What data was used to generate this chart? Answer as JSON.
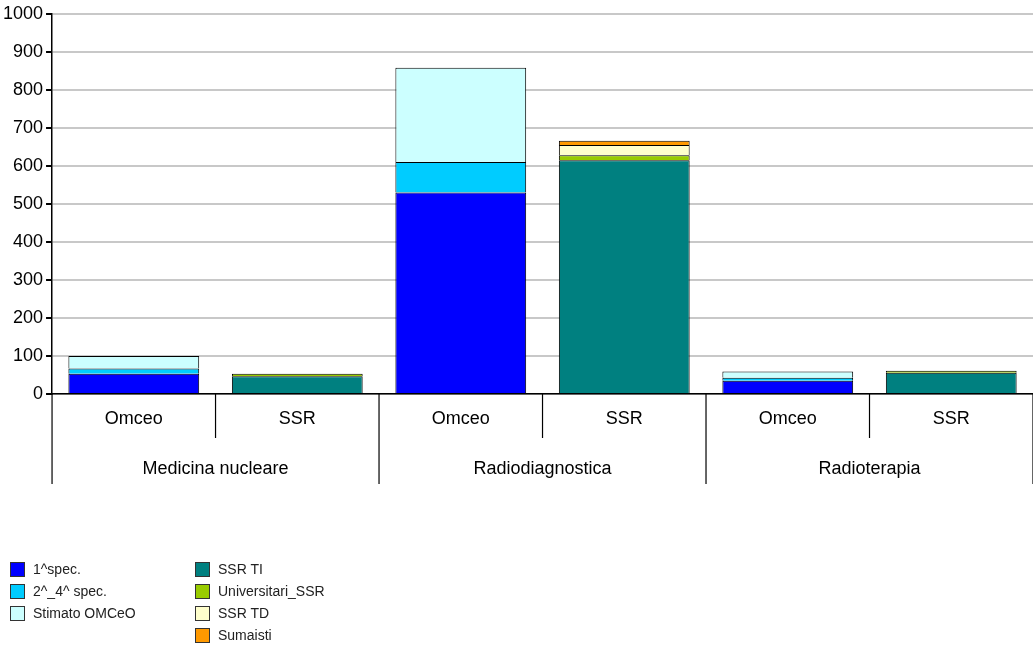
{
  "chart_data": {
    "type": "bar",
    "stacked": true,
    "categories": [
      "Omceo",
      "SSR",
      "Omceo",
      "SSR",
      "Omceo",
      "SSR"
    ],
    "annotations": [
      "Medicina nucleare",
      "Radiodiagnostica",
      "Radioterapia"
    ],
    "series": [
      {
        "name": "1^spec.",
        "color": "#0000ff",
        "values": [
          53,
          null,
          530,
          null,
          35,
          null
        ]
      },
      {
        "name": "2^_4^ spec.",
        "color": "#00ccff",
        "values": [
          14,
          null,
          80,
          null,
          8,
          null
        ]
      },
      {
        "name": "Stimato OMCeO",
        "color": "#ccffff",
        "values": [
          33,
          null,
          248,
          null,
          16,
          null
        ]
      },
      {
        "name": "SSR TI",
        "color": "#008080",
        "values": [
          null,
          47,
          null,
          615,
          null,
          56
        ]
      },
      {
        "name": "Universitari_SSR",
        "color": "#99cc00",
        "values": [
          null,
          6,
          null,
          13,
          null,
          5
        ]
      },
      {
        "name": "SSR TD",
        "color": "#ffffcc",
        "values": [
          null,
          null,
          null,
          27,
          null,
          null
        ]
      },
      {
        "name": "Sumaisti",
        "color": "#ff9900",
        "values": [
          null,
          null,
          null,
          11,
          null,
          null
        ]
      }
    ],
    "ylim": [
      0,
      1000
    ],
    "yticks": [
      0,
      100,
      200,
      300,
      400,
      500,
      600,
      700,
      800,
      900,
      1000
    ],
    "grid": "y",
    "legend": "bottom left"
  }
}
